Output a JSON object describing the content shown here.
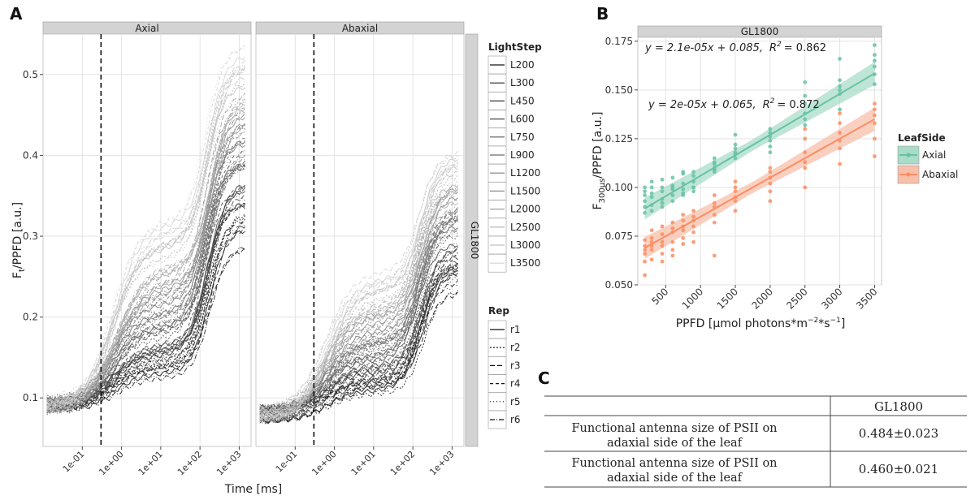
{
  "panel_labels": {
    "a": "A",
    "b": "B",
    "c": "C"
  },
  "chart_data": [
    {
      "type": "line",
      "panel": "A",
      "title": "",
      "xlabel": "Time [ms]",
      "ylabel_main": "F",
      "ylabel_sub": "t",
      "ylabel_rest": "/PPFD [a.u.]",
      "x_scale": "log10",
      "x_ticks": [
        {
          "value": 0.1,
          "label": "1e-01"
        },
        {
          "value": 1,
          "label": "1e+00"
        },
        {
          "value": 10,
          "label": "1e+01"
        },
        {
          "value": 100,
          "label": "1e+02"
        },
        {
          "value": 1000,
          "label": "1e+03"
        }
      ],
      "xlim": [
        0.01,
        2000
      ],
      "y_ticks": [
        0.1,
        0.2,
        0.3,
        0.4,
        0.5
      ],
      "ylim": [
        0.04,
        0.55
      ],
      "dashed_vline_x": 0.3,
      "facets": [
        {
          "label": "Axial",
          "min_start": 0.08,
          "min_end": 0.26,
          "max_end": 0.54
        },
        {
          "label": "Abaxial",
          "min_start": 0.07,
          "min_end": 0.21,
          "max_end": 0.41
        }
      ],
      "row_strip": "GL1800",
      "light_steps": [
        "L200",
        "L300",
        "L450",
        "L600",
        "L750",
        "L900",
        "L1200",
        "L1500",
        "L2000",
        "L2500",
        "L3000",
        "L3500"
      ],
      "light_ppfd": [
        200,
        300,
        450,
        600,
        750,
        900,
        1200,
        1500,
        2000,
        2500,
        3000,
        3500
      ],
      "reps": [
        "r1",
        "r2",
        "r3",
        "r4",
        "r5",
        "r6"
      ],
      "legend_lightstep_title": "LightStep",
      "legend_rep_title": "Rep",
      "grid": true
    },
    {
      "type": "scatter",
      "panel": "B",
      "strip": "GL1800",
      "xlabel": "PPFD [µmol photons*m",
      "xlabel_sup1": "−2",
      "xlabel_mid": "*s",
      "xlabel_sup2": "−1",
      "xlabel_end": "]",
      "ylabel_main": "F",
      "ylabel_sub": "300µs",
      "ylabel_rest": "/PPFD [a.u.]",
      "x_ticks": [
        500,
        1000,
        1500,
        2000,
        2500,
        3000,
        3500
      ],
      "xlim": [
        100,
        3600
      ],
      "y_ticks": [
        {
          "value": 0.05,
          "label": "0.050"
        },
        {
          "value": 0.075,
          "label": "0.075"
        },
        {
          "value": 0.1,
          "label": "0.100"
        },
        {
          "value": 0.125,
          "label": "0.125"
        },
        {
          "value": 0.15,
          "label": "0.150"
        },
        {
          "value": 0.175,
          "label": "0.175"
        }
      ],
      "ylim": [
        0.05,
        0.177
      ],
      "legend_title": "LeafSide",
      "series": [
        {
          "name": "Axial",
          "color": "#66c2a5",
          "band": "#a9dcc9",
          "fit": {
            "slope": 2.1e-05,
            "intercept": 0.085
          },
          "equation": "y = 2.1e-05x + 0.085,",
          "r2_value": "= 0.862",
          "points": [
            [
              200,
              0.09
            ],
            [
              200,
              0.096
            ],
            [
              200,
              0.1
            ],
            [
              200,
              0.093
            ],
            [
              200,
              0.087
            ],
            [
              200,
              0.098
            ],
            [
              300,
              0.091
            ],
            [
              300,
              0.1
            ],
            [
              300,
              0.103
            ],
            [
              300,
              0.095
            ],
            [
              300,
              0.088
            ],
            [
              300,
              0.097
            ],
            [
              450,
              0.092
            ],
            [
              450,
              0.104
            ],
            [
              450,
              0.098
            ],
            [
              450,
              0.094
            ],
            [
              450,
              0.1
            ],
            [
              450,
              0.09
            ],
            [
              600,
              0.096
            ],
            [
              600,
              0.1
            ],
            [
              600,
              0.099
            ],
            [
              600,
              0.105
            ],
            [
              600,
              0.093
            ],
            [
              600,
              0.101
            ],
            [
              750,
              0.099
            ],
            [
              750,
              0.107
            ],
            [
              750,
              0.096
            ],
            [
              750,
              0.102
            ],
            [
              750,
              0.108
            ],
            [
              750,
              0.097
            ],
            [
              900,
              0.1
            ],
            [
              900,
              0.106
            ],
            [
              900,
              0.103
            ],
            [
              900,
              0.098
            ],
            [
              900,
              0.108
            ],
            [
              900,
              0.1
            ],
            [
              1200,
              0.108
            ],
            [
              1200,
              0.112
            ],
            [
              1200,
              0.115
            ],
            [
              1200,
              0.11
            ],
            [
              1200,
              0.113
            ],
            [
              1200,
              0.109
            ],
            [
              1500,
              0.115
            ],
            [
              1500,
              0.12
            ],
            [
              1500,
              0.127
            ],
            [
              1500,
              0.117
            ],
            [
              1500,
              0.122
            ],
            [
              1500,
              0.118
            ],
            [
              2000,
              0.124
            ],
            [
              2000,
              0.13
            ],
            [
              2000,
              0.118
            ],
            [
              2000,
              0.128
            ],
            [
              2000,
              0.126
            ],
            [
              2000,
              0.121
            ],
            [
              2500,
              0.135
            ],
            [
              2500,
              0.147
            ],
            [
              2500,
              0.154
            ],
            [
              2500,
              0.138
            ],
            [
              2500,
              0.143
            ],
            [
              2500,
              0.132
            ],
            [
              3000,
              0.148
            ],
            [
              3000,
              0.155
            ],
            [
              3000,
              0.166
            ],
            [
              3000,
              0.152
            ],
            [
              3000,
              0.14
            ],
            [
              3000,
              0.15
            ],
            [
              3500,
              0.153
            ],
            [
              3500,
              0.158
            ],
            [
              3500,
              0.165
            ],
            [
              3500,
              0.173
            ],
            [
              3500,
              0.162
            ],
            [
              3500,
              0.168
            ]
          ]
        },
        {
          "name": "Abaxial",
          "color": "#fc8d62",
          "band": "#f7c0ab",
          "fit": {
            "slope": 2e-05,
            "intercept": 0.065
          },
          "equation": "y = 2e-05x + 0.065,",
          "r2_value": "= 0.872",
          "points": [
            [
              200,
              0.055
            ],
            [
              200,
              0.068
            ],
            [
              200,
              0.073
            ],
            [
              200,
              0.062
            ],
            [
              200,
              0.07
            ],
            [
              200,
              0.066
            ],
            [
              300,
              0.063
            ],
            [
              300,
              0.072
            ],
            [
              300,
              0.078
            ],
            [
              300,
              0.068
            ],
            [
              300,
              0.074
            ],
            [
              300,
              0.07
            ],
            [
              450,
              0.07
            ],
            [
              450,
              0.076
            ],
            [
              450,
              0.08
            ],
            [
              450,
              0.062
            ],
            [
              450,
              0.072
            ],
            [
              450,
              0.066
            ],
            [
              600,
              0.068
            ],
            [
              600,
              0.077
            ],
            [
              600,
              0.082
            ],
            [
              600,
              0.072
            ],
            [
              600,
              0.065
            ],
            [
              600,
              0.079
            ],
            [
              750,
              0.074
            ],
            [
              750,
              0.08
            ],
            [
              750,
              0.086
            ],
            [
              750,
              0.078
            ],
            [
              750,
              0.071
            ],
            [
              750,
              0.083
            ],
            [
              900,
              0.077
            ],
            [
              900,
              0.083
            ],
            [
              900,
              0.088
            ],
            [
              900,
              0.072
            ],
            [
              900,
              0.08
            ],
            [
              900,
              0.085
            ],
            [
              1200,
              0.065
            ],
            [
              1200,
              0.082
            ],
            [
              1200,
              0.09
            ],
            [
              1200,
              0.096
            ],
            [
              1200,
              0.086
            ],
            [
              1200,
              0.092
            ],
            [
              1500,
              0.088
            ],
            [
              1500,
              0.093
            ],
            [
              1500,
              0.098
            ],
            [
              1500,
              0.103
            ],
            [
              1500,
              0.095
            ],
            [
              1500,
              0.1
            ],
            [
              2000,
              0.098
            ],
            [
              2000,
              0.105
            ],
            [
              2000,
              0.11
            ],
            [
              2000,
              0.102
            ],
            [
              2000,
              0.093
            ],
            [
              2000,
              0.108
            ],
            [
              2500,
              0.1
            ],
            [
              2500,
              0.11
            ],
            [
              2500,
              0.118
            ],
            [
              2500,
              0.125
            ],
            [
              2500,
              0.13
            ],
            [
              2500,
              0.113
            ],
            [
              3000,
              0.112
            ],
            [
              3000,
              0.12
            ],
            [
              3000,
              0.128
            ],
            [
              3000,
              0.133
            ],
            [
              3000,
              0.138
            ],
            [
              3000,
              0.124
            ],
            [
              3500,
              0.116
            ],
            [
              3500,
              0.125
            ],
            [
              3500,
              0.133
            ],
            [
              3500,
              0.137
            ],
            [
              3500,
              0.14
            ],
            [
              3500,
              0.143
            ]
          ]
        }
      ],
      "grid": true
    }
  ],
  "table": {
    "header": "GL1800",
    "rows": [
      {
        "label_line1": "Functional antenna size of PSII on",
        "label_line2": "adaxial side of the leaf",
        "value": "0.484±0.023"
      },
      {
        "label_line1": "Functional antenna size of PSII on",
        "label_line2": "adaxial side of the leaf",
        "value": "0.460±0.021"
      }
    ]
  }
}
